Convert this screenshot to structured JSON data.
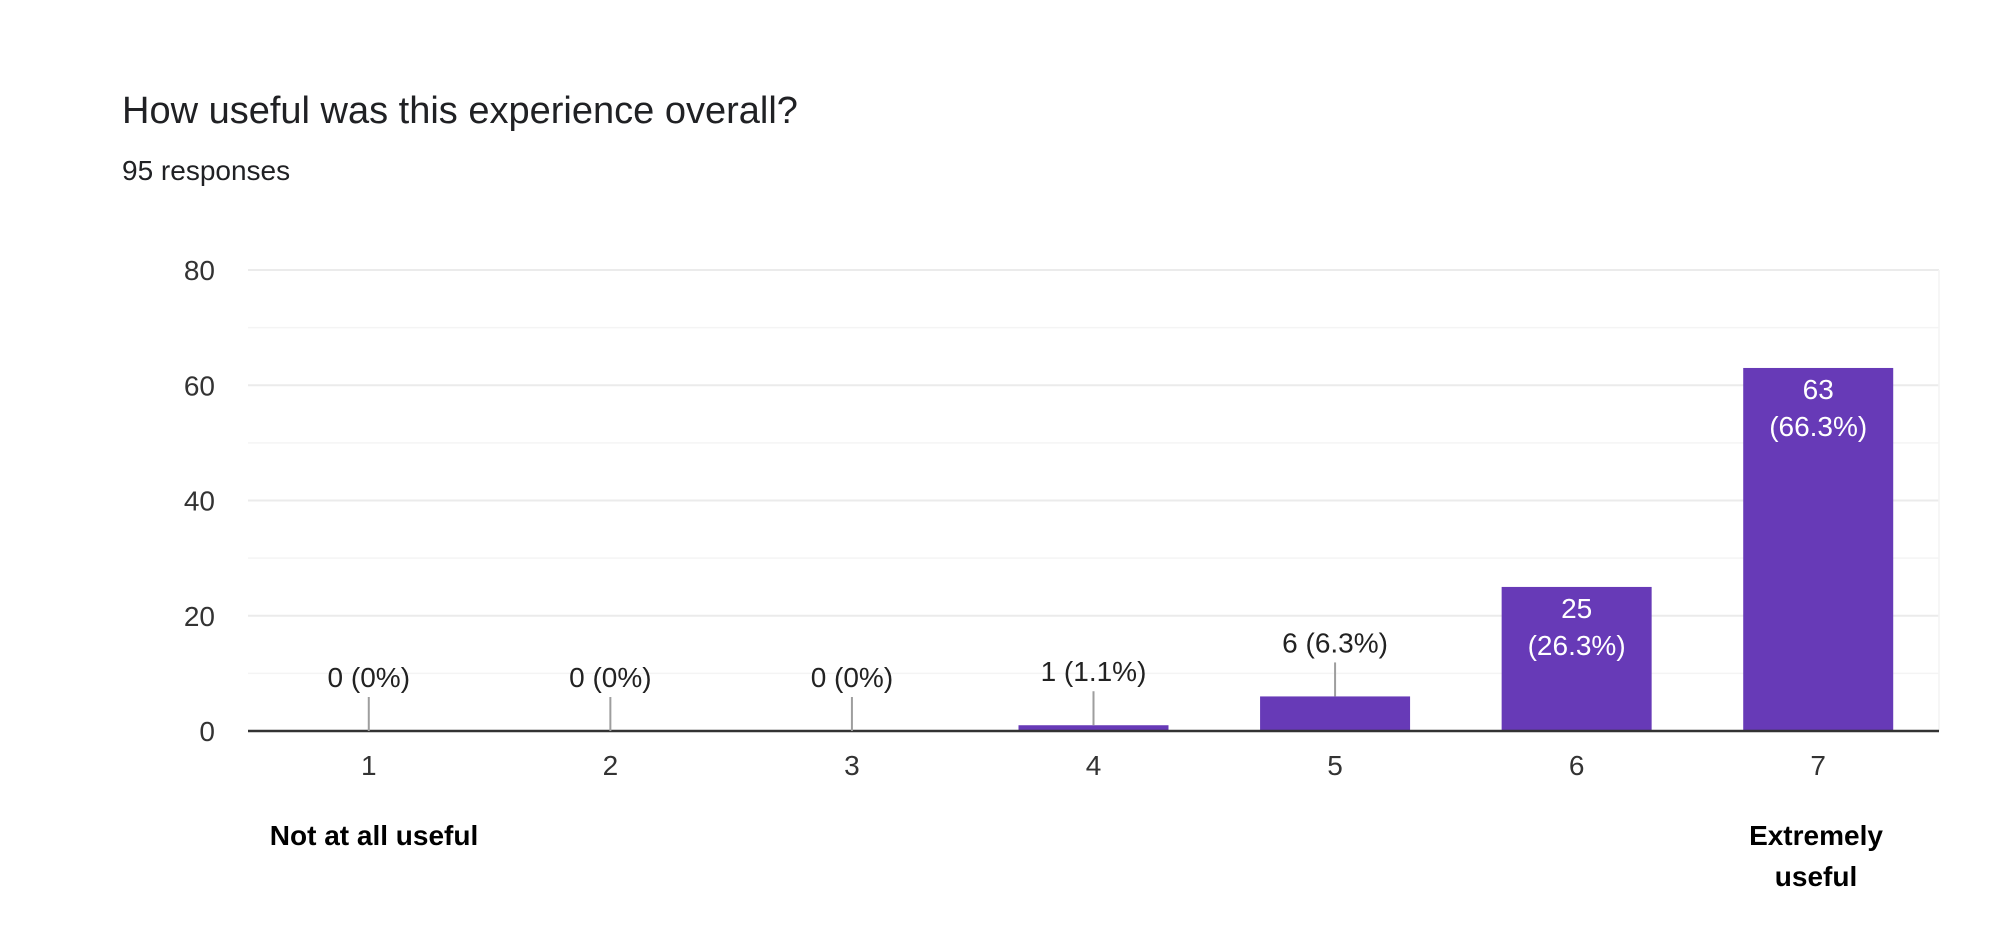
{
  "title": "How useful was this experience overall?",
  "subtitle": "95 responses",
  "scale_labels": {
    "low": "Not at all useful",
    "high": "Extremely useful"
  },
  "colors": {
    "bar": "#673ab7",
    "grid": "#ebebeb",
    "axis": "#333333",
    "leader": "#9e9e9e",
    "text": "#333333",
    "inside_label": "#ffffff"
  },
  "chart_data": {
    "type": "bar",
    "categories": [
      "1",
      "2",
      "3",
      "4",
      "5",
      "6",
      "7"
    ],
    "values": [
      0,
      0,
      0,
      1,
      6,
      25,
      63
    ],
    "data_labels": [
      "0 (0%)",
      "0 (0%)",
      "0 (0%)",
      "1 (1.1%)",
      "6 (6.3%)",
      "25\n(26.3%)",
      "63\n(66.3%)"
    ],
    "title": "How useful was this experience overall?",
    "subtitle": "95 responses",
    "xlabel": "",
    "ylabel": "",
    "ylim": [
      0,
      80
    ],
    "yticks": [
      0,
      20,
      40,
      60,
      80
    ],
    "grid": true,
    "legend": "none"
  }
}
